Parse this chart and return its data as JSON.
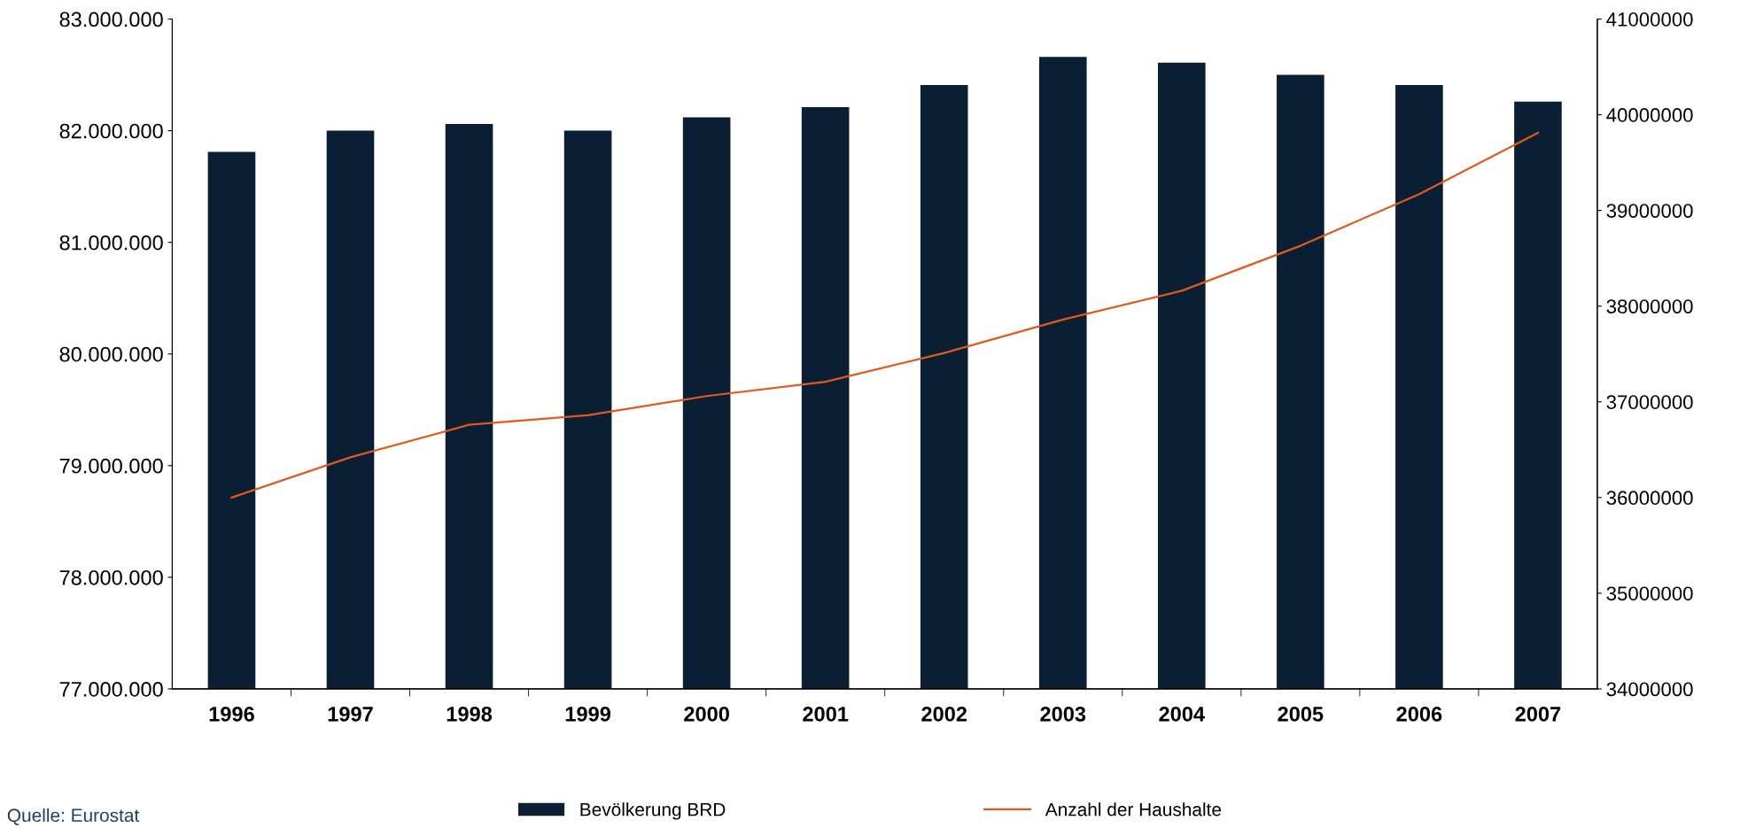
{
  "chart_data": {
    "type": "bar",
    "categories": [
      "1996",
      "1997",
      "1998",
      "1999",
      "2000",
      "2001",
      "2002",
      "2003",
      "2004",
      "2005",
      "2006",
      "2007"
    ],
    "series": [
      {
        "name": "Bevölkerung BRD",
        "color": "#0a1f33",
        "values": [
          81810000,
          82000000,
          82060000,
          82000000,
          82120000,
          82210000,
          82410000,
          82660000,
          82610000,
          82500000,
          82410000,
          82260000
        ]
      },
      {
        "name": "Anzahl der Haushalte",
        "color": "#e05a1e",
        "type": "line",
        "axis": "y2",
        "values": [
          36000000,
          36420000,
          36760000,
          36860000,
          37060000,
          37210000,
          37510000,
          37860000,
          38160000,
          38630000,
          39170000,
          39810000
        ]
      }
    ],
    "ylim": [
      77000000,
      83000000
    ],
    "yticks": [
      {
        "value": 77000000,
        "label": "77.000.000"
      },
      {
        "value": 78000000,
        "label": "78.000.000"
      },
      {
        "value": 79000000,
        "label": "79.000.000"
      },
      {
        "value": 80000000,
        "label": "80.000.000"
      },
      {
        "value": 81000000,
        "label": "81.000.000"
      },
      {
        "value": 82000000,
        "label": "82.000.000"
      },
      {
        "value": 83000000,
        "label": "83.000.000"
      }
    ],
    "y2lim": [
      34000000,
      41000000
    ],
    "y2ticks": [
      34000000,
      35000000,
      36000000,
      37000000,
      38000000,
      39000000,
      40000000,
      41000000
    ],
    "grid": false,
    "legend": "bottom",
    "marker": "none",
    "line_style": "solid",
    "annotations": [
      "Quelle: Eurostat"
    ]
  }
}
